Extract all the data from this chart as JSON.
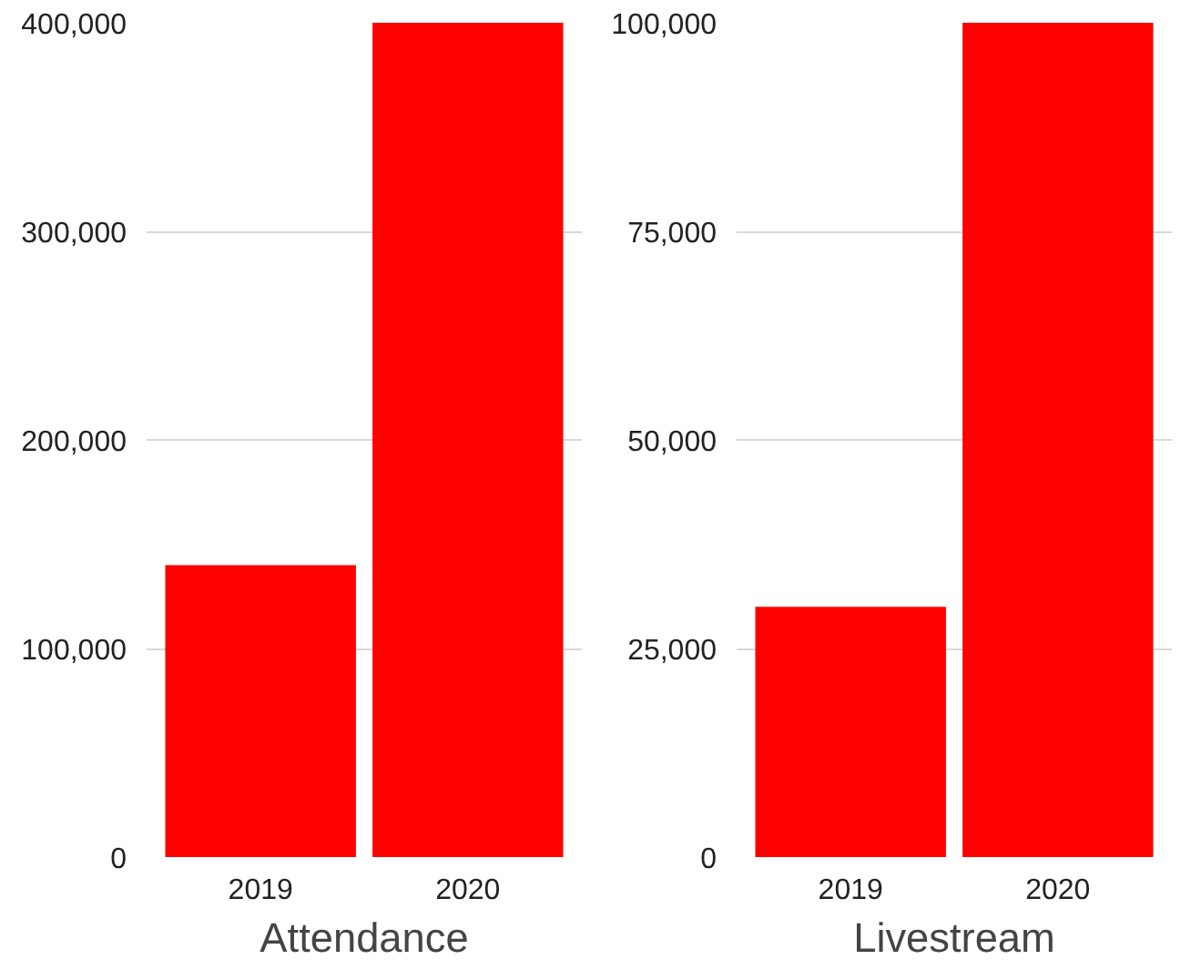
{
  "chart_data": [
    {
      "type": "bar",
      "xlabel": "Attendance",
      "categories": [
        "2019",
        "2020"
      ],
      "values": [
        140000,
        400000
      ],
      "color": "#ff0000",
      "ylim": [
        0,
        400000
      ],
      "yticks": [
        {
          "value": 0,
          "label": "0"
        },
        {
          "value": 100000,
          "label": "100,000"
        },
        {
          "value": 200000,
          "label": "200,000"
        },
        {
          "value": 300000,
          "label": "300,000"
        },
        {
          "value": 400000,
          "label": "400,000"
        }
      ],
      "grid": "y"
    },
    {
      "type": "bar",
      "xlabel": "Livestream",
      "categories": [
        "2019",
        "2020"
      ],
      "values": [
        30000,
        100000
      ],
      "color": "#ff0000",
      "ylim": [
        0,
        100000
      ],
      "yticks": [
        {
          "value": 0,
          "label": "0"
        },
        {
          "value": 25000,
          "label": "25,000"
        },
        {
          "value": 50000,
          "label": "50,000"
        },
        {
          "value": 75000,
          "label": "75,000"
        },
        {
          "value": 100000,
          "label": "100,000"
        }
      ],
      "grid": "y"
    }
  ]
}
